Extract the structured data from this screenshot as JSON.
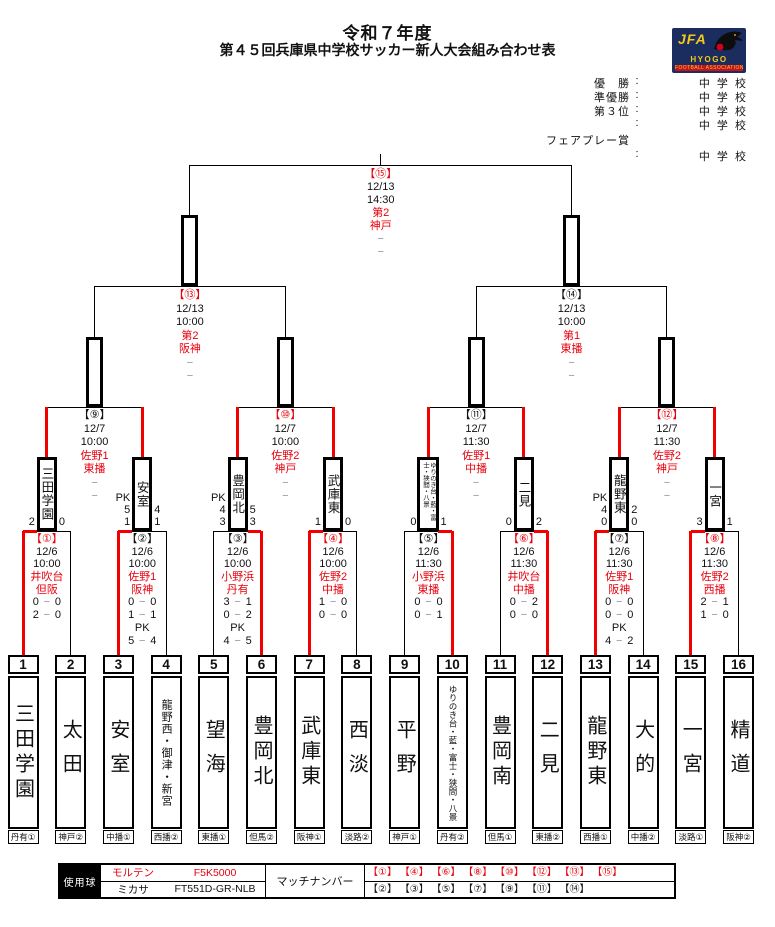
{
  "header": {
    "title": "令和７年度",
    "subtitle": "第４５回兵庫県中学校サッカー新人大会組み合わせ表",
    "logo": {
      "jfa": "JFA",
      "region": "HYOGO",
      "org": "FOOTBALL ASSOCIATION"
    },
    "standings": [
      {
        "label": "優　勝",
        "colon": ":",
        "suffix": "中 学 校"
      },
      {
        "label": "準優勝",
        "colon": ":",
        "suffix": "中 学 校"
      },
      {
        "label": "第３位",
        "colon": ":",
        "suffix": "中 学 校"
      },
      {
        "label": "",
        "colon": ":",
        "suffix": "中 学 校"
      },
      {
        "label": "フェアプレー賞",
        "colon": "",
        "suffix": ""
      },
      {
        "label": "",
        "colon": ":",
        "suffix": "中 学 校"
      }
    ]
  },
  "teams": [
    {
      "no": "1",
      "name": "三田学園",
      "region": "丹有①"
    },
    {
      "no": "2",
      "name": "太田",
      "region": "神戸②"
    },
    {
      "no": "3",
      "name": "安室",
      "region": "中播①"
    },
    {
      "no": "4",
      "name": "龍野西・御津・新宮",
      "region": "西播②"
    },
    {
      "no": "5",
      "name": "望海",
      "region": "東播①"
    },
    {
      "no": "6",
      "name": "豊岡北",
      "region": "但馬②"
    },
    {
      "no": "7",
      "name": "武庫東",
      "region": "阪神①"
    },
    {
      "no": "8",
      "name": "西淡",
      "region": "淡路②"
    },
    {
      "no": "9",
      "name": "平野",
      "region": "神戸①"
    },
    {
      "no": "10",
      "name": "ゆりのき台・藍・富士・狭間・八景",
      "region": "丹有②"
    },
    {
      "no": "11",
      "name": "豊岡南",
      "region": "但馬①"
    },
    {
      "no": "12",
      "name": "二見",
      "region": "東播②"
    },
    {
      "no": "13",
      "name": "龍野東",
      "region": "西播①"
    },
    {
      "no": "14",
      "name": "大的",
      "region": "中播②"
    },
    {
      "no": "15",
      "name": "一宮",
      "region": "淡路①"
    },
    {
      "no": "16",
      "name": "精道",
      "region": "阪神②"
    }
  ],
  "bracket": {
    "pk_label": "PK",
    "final": {
      "no": "【⑮】",
      "no_red": true,
      "date": "12/13",
      "time": "14:30",
      "venue1": "第2",
      "venue2": "神戸",
      "score1": "−",
      "score2": "−"
    },
    "semifinals": [
      {
        "no": "【⑬】",
        "no_red": true,
        "date": "12/13",
        "time": "10:00",
        "venue1": "第2",
        "venue2": "阪神",
        "score1": "−",
        "score2": "−"
      },
      {
        "no": "【⑭】",
        "no_red": false,
        "date": "12/13",
        "time": "10:00",
        "venue1": "第1",
        "venue2": "東播",
        "score1": "−",
        "score2": "−"
      }
    ],
    "quarterfinals": [
      {
        "no": "【⑨】",
        "no_red": false,
        "date": "12/7",
        "time": "10:00",
        "venue1": "佐野1",
        "venue2": "東播",
        "score1": "−",
        "score2": "−"
      },
      {
        "no": "【⑩】",
        "no_red": true,
        "date": "12/7",
        "time": "10:00",
        "venue1": "佐野2",
        "venue2": "神戸",
        "score1": "−",
        "score2": "−"
      },
      {
        "no": "【⑪】",
        "no_red": false,
        "date": "12/7",
        "time": "11:30",
        "venue1": "佐野1",
        "venue2": "中播",
        "score1": "−",
        "score2": "−"
      },
      {
        "no": "【⑫】",
        "no_red": true,
        "date": "12/7",
        "time": "11:30",
        "venue1": "佐野2",
        "venue2": "神戸",
        "score1": "−",
        "score2": "−"
      }
    ],
    "round1": [
      {
        "no": "【①】",
        "no_red": true,
        "date": "12/6",
        "time": "10:00",
        "venue1": "井吹台",
        "venue2": "但阪",
        "winner": "left",
        "winner_name": "三田学園",
        "left_col": [
          "2"
        ],
        "right_col": [
          "0"
        ],
        "periods": [
          [
            "0",
            "0"
          ],
          [
            "2",
            "0"
          ]
        ]
      },
      {
        "no": "【②】",
        "no_red": false,
        "date": "12/6",
        "time": "10:00",
        "venue1": "佐野1",
        "venue2": "阪神",
        "winner": "left",
        "winner_name": "安室",
        "left_col": [
          "PK",
          "5",
          "1"
        ],
        "right_col": [
          "4",
          "1"
        ],
        "periods": [
          [
            "0",
            "0"
          ],
          [
            "1",
            "1"
          ]
        ],
        "pk": [
          "5",
          "4"
        ]
      },
      {
        "no": "【③】",
        "no_red": false,
        "date": "12/6",
        "time": "10:00",
        "venue1": "小野浜",
        "venue2": "丹有",
        "winner": "right",
        "winner_name": "豊岡北",
        "left_col": [
          "PK",
          "4",
          "3"
        ],
        "right_col": [
          "5",
          "3"
        ],
        "periods": [
          [
            "3",
            "1"
          ],
          [
            "0",
            "2"
          ]
        ],
        "pk": [
          "4",
          "5"
        ]
      },
      {
        "no": "【④】",
        "no_red": true,
        "date": "12/6",
        "time": "10:00",
        "venue1": "佐野2",
        "venue2": "中播",
        "winner": "left",
        "winner_name": "武庫東",
        "left_col": [
          "1"
        ],
        "right_col": [
          "0"
        ],
        "periods": [
          [
            "1",
            "0"
          ],
          [
            "0",
            "0"
          ]
        ]
      },
      {
        "no": "【⑤】",
        "no_red": false,
        "date": "12/6",
        "time": "11:30",
        "venue1": "小野浜",
        "venue2": "東播",
        "winner": "right",
        "winner_name": "ゆりのき台・藍・富士・狭間・八景",
        "small_name": true,
        "left_col": [
          "0"
        ],
        "right_col": [
          "1"
        ],
        "periods": [
          [
            "0",
            "0"
          ],
          [
            "0",
            "1"
          ]
        ]
      },
      {
        "no": "【⑥】",
        "no_red": true,
        "date": "12/6",
        "time": "11:30",
        "venue1": "井吹台",
        "venue2": "中播",
        "winner": "right",
        "winner_name": "二見",
        "left_col": [
          "0"
        ],
        "right_col": [
          "2"
        ],
        "periods": [
          [
            "0",
            "2"
          ],
          [
            "0",
            "0"
          ]
        ]
      },
      {
        "no": "【⑦】",
        "no_red": false,
        "date": "12/6",
        "time": "11:30",
        "venue1": "佐野1",
        "venue2": "阪神",
        "winner": "left",
        "winner_name": "龍野東",
        "left_col": [
          "PK",
          "4",
          "0"
        ],
        "right_col": [
          "2",
          "0"
        ],
        "periods": [
          [
            "0",
            "0"
          ],
          [
            "0",
            "0"
          ]
        ],
        "pk": [
          "4",
          "2"
        ]
      },
      {
        "no": "【⑧】",
        "no_red": true,
        "date": "12/6",
        "time": "11:30",
        "venue1": "佐野2",
        "venue2": "西播",
        "winner": "left",
        "winner_name": "一宮",
        "left_col": [
          "3"
        ],
        "right_col": [
          "1"
        ],
        "periods": [
          [
            "2",
            "1"
          ],
          [
            "1",
            "0"
          ]
        ]
      }
    ]
  },
  "footer": {
    "balls_label": "使用球",
    "balls": [
      {
        "maker": "モルテン",
        "model": "F5K5000",
        "red": true
      },
      {
        "maker": "ミカサ",
        "model": "FT551D-GR-NLB",
        "red": false
      }
    ],
    "match_number_label": "マッチナンバー",
    "red_matches": [
      "【①】",
      "【④】",
      "【⑥】",
      "【⑧】",
      "【⑩】",
      "【⑫】",
      "【⑬】",
      "【⑮】"
    ],
    "black_matches": [
      "【②】",
      "【③】",
      "【⑤】",
      "【⑦】",
      "【⑨】",
      "【⑪】",
      "【⑭】"
    ]
  },
  "colors": {
    "accent_red": "#e8000d",
    "line_red": "#f20000",
    "logo_navy": "#1b2c5e",
    "logo_yellow": "#f5c91c"
  }
}
